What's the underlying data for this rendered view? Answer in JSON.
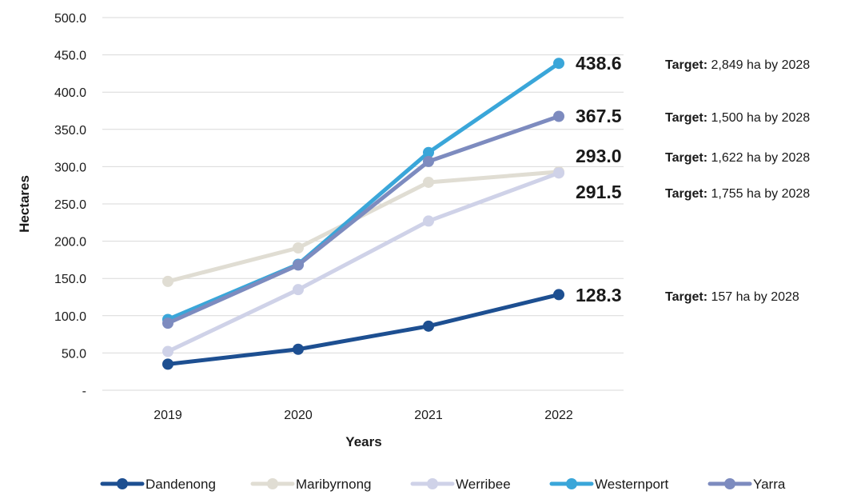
{
  "chart_data": {
    "type": "line",
    "x": [
      "2019",
      "2020",
      "2021",
      "2022"
    ],
    "xlabel": "Years",
    "ylabel": "Hectares",
    "ylim": [
      0,
      500
    ],
    "yticks": [
      "-",
      "50.0",
      "100.0",
      "150.0",
      "200.0",
      "250.0",
      "300.0",
      "350.0",
      "400.0",
      "450.0",
      "500.0"
    ],
    "grid": true,
    "legend_position": "bottom",
    "series": [
      {
        "name": "Dandenong",
        "color": "#1d4f91",
        "values": [
          35,
          55,
          86,
          128.3
        ],
        "end_label": "128.3",
        "target_prefix": "Target:",
        "target_text": " 157 ha by 2028"
      },
      {
        "name": "Maribyrnong",
        "color": "#e0ddd3",
        "values": [
          146,
          191,
          279,
          293.0
        ],
        "end_label": "293.0",
        "target_prefix": "Target:",
        "target_text": " 1,622 ha by 2028"
      },
      {
        "name": "Werribee",
        "color": "#cfd2e8",
        "values": [
          52,
          135,
          227,
          291.5
        ],
        "end_label": "291.5",
        "target_prefix": "Target:",
        "target_text": " 1,755 ha by 2028"
      },
      {
        "name": "Westernport",
        "color": "#3aa6d9",
        "values": [
          95,
          169,
          319,
          438.6
        ],
        "end_label": "438.6",
        "target_prefix": "Target:",
        "target_text": " 2,849 ha by 2028"
      },
      {
        "name": "Yarra",
        "color": "#7d8bbf",
        "values": [
          90,
          168,
          307,
          367.5
        ],
        "end_label": "367.5",
        "target_prefix": "Target:",
        "target_text": " 1,500 ha by 2028"
      }
    ]
  }
}
